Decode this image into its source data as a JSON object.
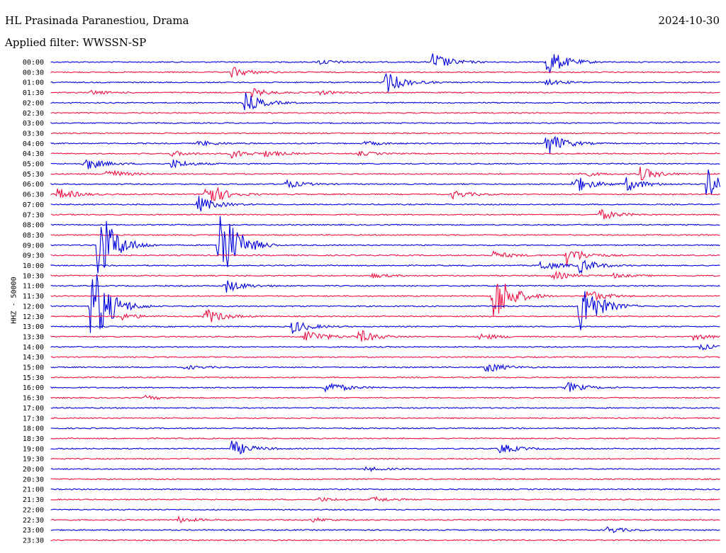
{
  "header": {
    "station": "HL Prasinada Paranestiou, Drama",
    "date": "2024-10-30",
    "filter": "Applied filter: WWSSN-SP"
  },
  "chart_data": {
    "type": "line",
    "title": "HL Prasinada Paranestiou, Drama",
    "ylabel": "HHZ - 50000",
    "colors": [
      "#0000dd",
      "#ee1144"
    ],
    "rows": [
      {
        "label": "00:00",
        "events": [
          [
            0.4,
            4
          ],
          [
            0.57,
            14
          ],
          [
            0.74,
            22
          ]
        ]
      },
      {
        "label": "00:30",
        "events": [
          [
            0.27,
            8
          ]
        ]
      },
      {
        "label": "01:00",
        "events": [
          [
            0.5,
            16
          ],
          [
            0.74,
            4
          ]
        ]
      },
      {
        "label": "01:30",
        "events": [
          [
            0.3,
            6
          ],
          [
            0.06,
            3
          ],
          [
            0.4,
            3
          ]
        ]
      },
      {
        "label": "02:00",
        "events": [
          [
            0.29,
            14
          ]
        ]
      },
      {
        "label": "02:30",
        "events": []
      },
      {
        "label": "03:00",
        "events": []
      },
      {
        "label": "03:30",
        "events": []
      },
      {
        "label": "04:00",
        "events": [
          [
            0.74,
            18
          ],
          [
            0.22,
            4
          ],
          [
            0.47,
            3
          ]
        ]
      },
      {
        "label": "04:30",
        "events": [
          [
            0.27,
            6
          ],
          [
            0.18,
            4
          ],
          [
            0.32,
            4
          ],
          [
            0.46,
            3
          ]
        ]
      },
      {
        "label": "05:00",
        "events": [
          [
            0.05,
            10
          ],
          [
            0.18,
            7
          ]
        ]
      },
      {
        "label": "05:30",
        "events": [
          [
            0.08,
            8
          ],
          [
            0.79,
            4
          ],
          [
            0.88,
            10
          ]
        ]
      },
      {
        "label": "06:00",
        "events": [
          [
            0.35,
            6
          ],
          [
            0.78,
            14
          ],
          [
            0.86,
            10
          ],
          [
            0.98,
            24
          ]
        ]
      },
      {
        "label": "06:30",
        "events": [
          [
            0.01,
            9
          ],
          [
            0.23,
            20
          ],
          [
            0.6,
            6
          ]
        ]
      },
      {
        "label": "07:00",
        "events": [
          [
            0.22,
            12
          ]
        ]
      },
      {
        "label": "07:30",
        "events": [
          [
            0.82,
            8
          ]
        ]
      },
      {
        "label": "08:00",
        "events": []
      },
      {
        "label": "08:30",
        "events": []
      },
      {
        "label": "09:00",
        "events": [
          [
            0.25,
            70
          ],
          [
            0.07,
            60
          ]
        ]
      },
      {
        "label": "09:30",
        "events": [
          [
            0.77,
            14
          ],
          [
            0.66,
            6
          ]
        ]
      },
      {
        "label": "10:00",
        "events": [
          [
            0.73,
            8
          ],
          [
            0.79,
            10
          ]
        ]
      },
      {
        "label": "10:30",
        "events": [
          [
            0.75,
            6
          ],
          [
            0.48,
            3
          ],
          [
            0.84,
            3
          ]
        ]
      },
      {
        "label": "11:00",
        "events": [
          [
            0.26,
            10
          ]
        ]
      },
      {
        "label": "11:30",
        "events": [
          [
            0.66,
            45
          ],
          [
            0.8,
            10
          ]
        ]
      },
      {
        "label": "12:00",
        "events": [
          [
            0.06,
            70
          ],
          [
            0.79,
            45
          ]
        ]
      },
      {
        "label": "12:30",
        "events": [
          [
            0.1,
            6
          ],
          [
            0.23,
            12
          ]
        ]
      },
      {
        "label": "13:00",
        "events": [
          [
            0.36,
            10
          ]
        ]
      },
      {
        "label": "13:30",
        "events": [
          [
            0.38,
            12
          ],
          [
            0.46,
            10
          ],
          [
            0.64,
            5
          ],
          [
            0.96,
            5
          ]
        ]
      },
      {
        "label": "14:00",
        "events": [
          [
            0.97,
            4
          ]
        ]
      },
      {
        "label": "14:30",
        "events": []
      },
      {
        "label": "15:00",
        "events": [
          [
            0.65,
            8
          ],
          [
            0.2,
            3
          ]
        ]
      },
      {
        "label": "15:30",
        "events": []
      },
      {
        "label": "16:00",
        "events": [
          [
            0.41,
            10
          ],
          [
            0.77,
            8
          ]
        ]
      },
      {
        "label": "16:30",
        "events": [
          [
            0.14,
            3
          ]
        ]
      },
      {
        "label": "17:00",
        "events": []
      },
      {
        "label": "17:30",
        "events": []
      },
      {
        "label": "18:00",
        "events": []
      },
      {
        "label": "18:30",
        "events": []
      },
      {
        "label": "19:00",
        "events": [
          [
            0.27,
            12
          ],
          [
            0.67,
            8
          ]
        ]
      },
      {
        "label": "19:30",
        "events": []
      },
      {
        "label": "20:00",
        "events": [
          [
            0.47,
            3
          ]
        ]
      },
      {
        "label": "20:30",
        "events": []
      },
      {
        "label": "21:00",
        "events": []
      },
      {
        "label": "21:30",
        "events": [
          [
            0.48,
            4
          ],
          [
            0.4,
            3
          ]
        ]
      },
      {
        "label": "22:00",
        "events": []
      },
      {
        "label": "22:30",
        "events": [
          [
            0.19,
            4
          ],
          [
            0.39,
            3
          ]
        ]
      },
      {
        "label": "23:00",
        "events": [
          [
            0.83,
            5
          ]
        ]
      },
      {
        "label": "23:30",
        "events": []
      }
    ]
  }
}
